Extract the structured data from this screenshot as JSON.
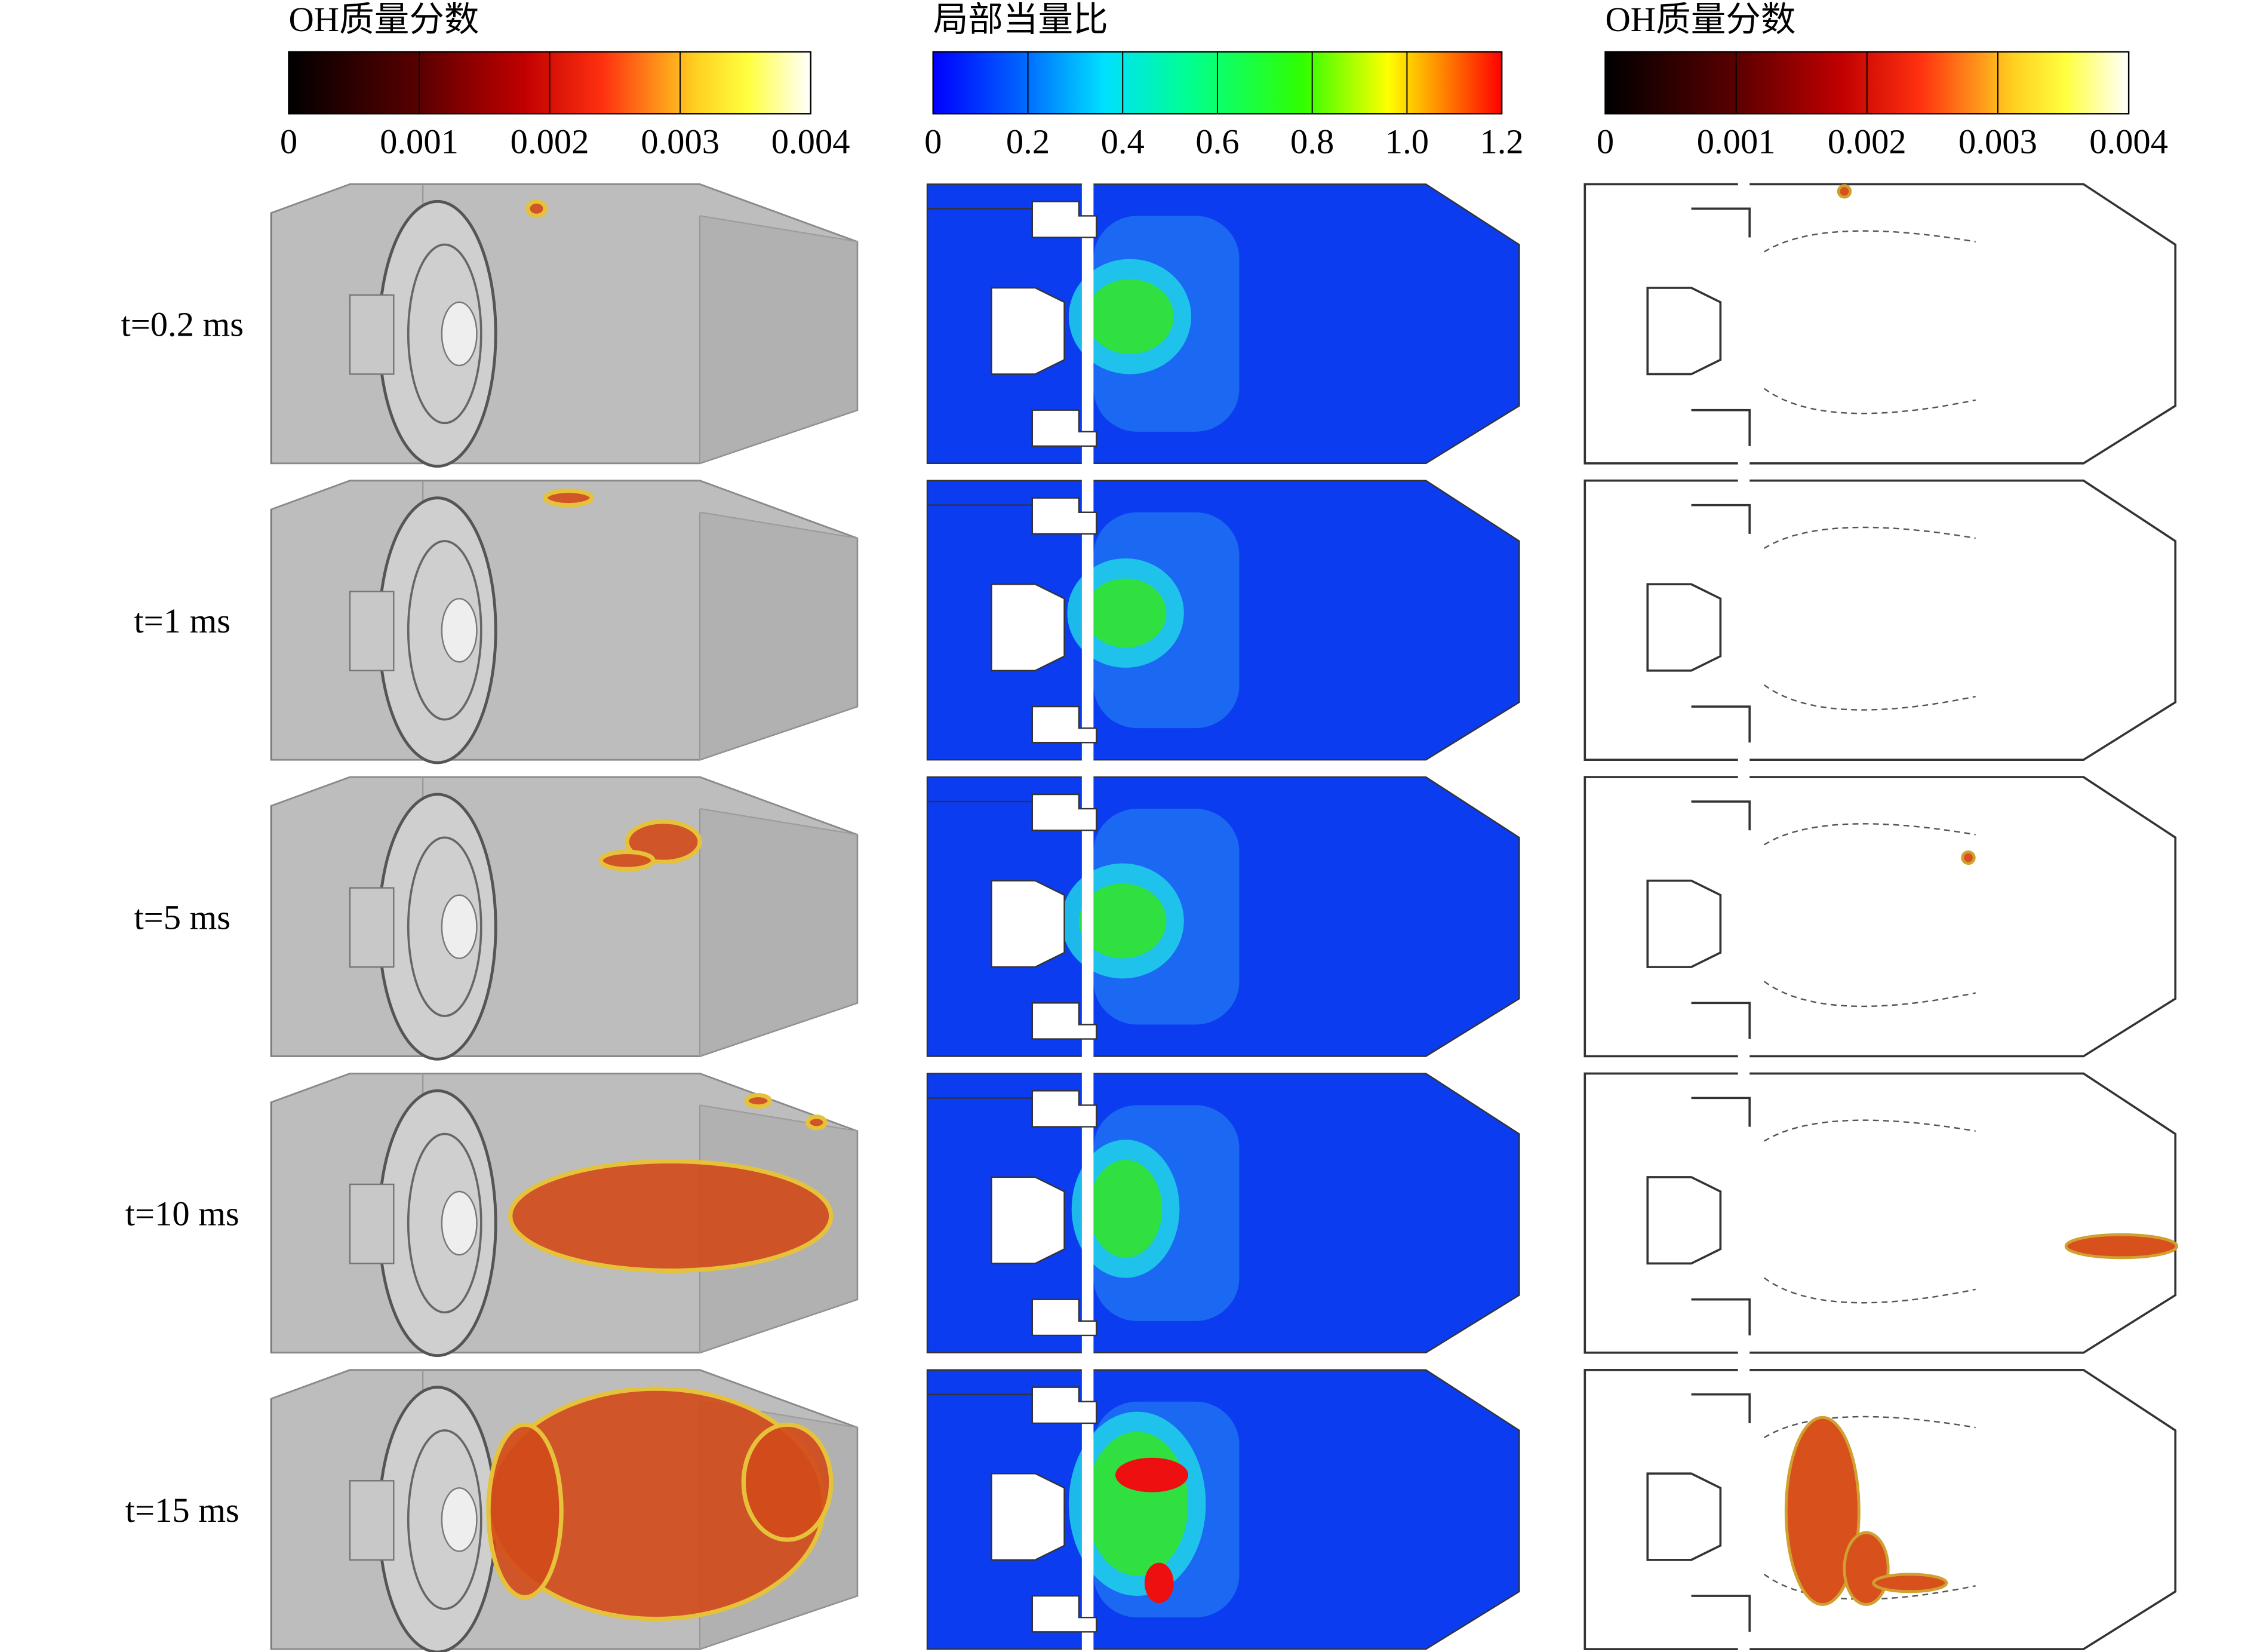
{
  "colorbars": [
    {
      "title": "OH质量分数",
      "ticks": [
        0,
        0.001,
        0.002,
        0.003,
        0.004
      ]
    },
    {
      "title": "局部当量比",
      "ticks": [
        0,
        0.2,
        0.4,
        0.6,
        0.8,
        {
          "value": 1,
          "label": "1.0"
        },
        1.2
      ]
    },
    {
      "title": "OH质量分数",
      "ticks": [
        0,
        0.001,
        0.002,
        0.003,
        0.004
      ]
    }
  ],
  "rows": [
    {
      "label": "t=0.2 ms"
    },
    {
      "label": "t=1 ms"
    },
    {
      "label": "t=5 ms"
    },
    {
      "label": "t=10 ms"
    },
    {
      "label": "t=15 ms"
    }
  ]
}
